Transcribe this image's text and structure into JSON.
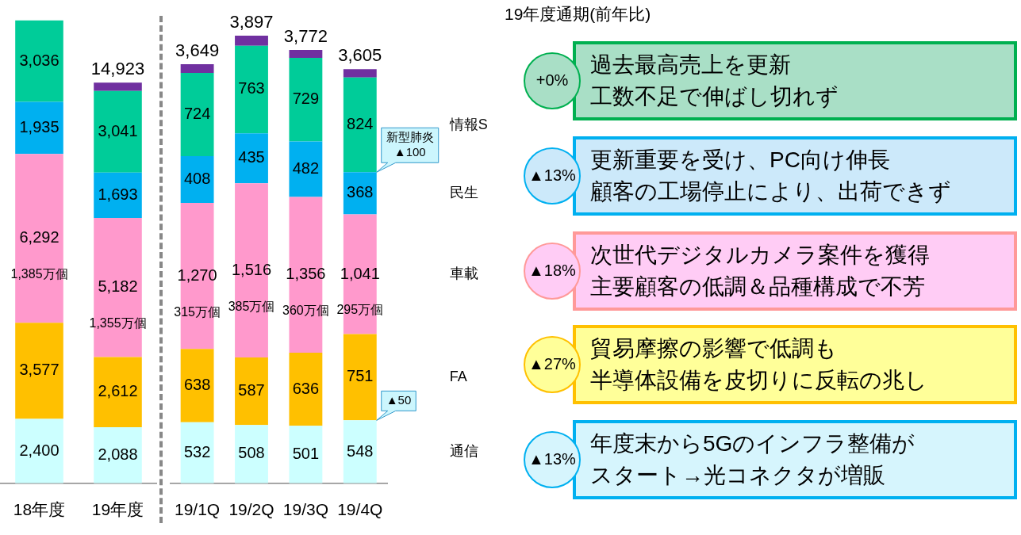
{
  "chart_data": [
    {
      "type": "bar",
      "stacked": true,
      "categories": [
        "18年度",
        "19年度"
      ],
      "series": [
        {
          "color": "#ccffff",
          "values": [
            2400,
            2088
          ],
          "value_labels": [
            "2,400",
            "2,088"
          ]
        },
        {
          "color": "#ffc000",
          "values": [
            3577,
            2612
          ],
          "value_labels": [
            "3,577",
            "2,612"
          ]
        },
        {
          "color": "#ff99cc",
          "values": [
            6292,
            5182
          ],
          "value_labels": [
            "6,292",
            "5,182"
          ]
        },
        {
          "color": "#00b0f0",
          "values": [
            1935,
            1693
          ],
          "value_labels": [
            "1,935",
            "1,693"
          ]
        },
        {
          "color": "#00cc99",
          "values": [
            3036,
            3041
          ],
          "value_labels": [
            "3,036",
            "3,041"
          ]
        },
        {
          "color": "#7030a0",
          "values": [
            null,
            307
          ],
          "value_labels": [
            null,
            null
          ]
        }
      ],
      "totals": [
        null,
        "14,923"
      ],
      "annotations": [
        "1,385万個",
        "1,355万個"
      ]
    },
    {
      "type": "bar",
      "stacked": true,
      "categories": [
        "19/1Q",
        "19/2Q",
        "19/3Q",
        "19/4Q"
      ],
      "series": [
        {
          "name": "通信",
          "color": "#ccffff",
          "values": [
            532,
            508,
            501,
            548
          ],
          "value_labels": [
            "532",
            "508",
            "501",
            "548"
          ]
        },
        {
          "name": "FA",
          "color": "#ffc000",
          "values": [
            638,
            587,
            636,
            751
          ],
          "value_labels": [
            "638",
            "587",
            "636",
            "751"
          ]
        },
        {
          "name": "車載",
          "color": "#ff99cc",
          "values": [
            1270,
            1516,
            1356,
            1041
          ],
          "value_labels": [
            "1,270",
            "1,516",
            "1,356",
            "1,041"
          ]
        },
        {
          "name": "民生",
          "color": "#00b0f0",
          "values": [
            408,
            435,
            482,
            368
          ],
          "value_labels": [
            "408",
            "435",
            "482",
            "368"
          ]
        },
        {
          "name": "情報S",
          "color": "#00cc99",
          "values": [
            724,
            763,
            729,
            824
          ],
          "value_labels": [
            "724",
            "763",
            "729",
            "824"
          ]
        },
        {
          "color": "#7030a0",
          "values": [
            77,
            88,
            68,
            73
          ],
          "value_labels": [
            null,
            null,
            null,
            null
          ]
        }
      ],
      "totals": [
        "3,649",
        "3,897",
        "3,772",
        "3,605"
      ],
      "annotations": [
        "315万個",
        "385万個",
        "360万個",
        "295万個",
        {
          "text": "新型肺炎 ▲100",
          "x": "19/4Q",
          "y": 2708
        },
        {
          "text": "▲50",
          "x": "19/4Q",
          "y": 548
        }
      ]
    },
    {
      "type": "other",
      "title": "19年度通期(前年比)",
      "annotations": [
        "+0%",
        "過去最高売上を更新",
        "工数不足で伸ばし切れず",
        "▲13%",
        "更新重要を受け、PC向け伸長",
        "顧客の工場停止により、出荷できず",
        "▲18%",
        "次世代デジタルカメラ案件を獲得",
        "主要顧客の低調＆品種構成で不芳",
        "▲27%",
        "貿易摩擦の影響で低調も",
        "半導体設備を皮切りに反転の兆し",
        "▲13%",
        "年度末から5Gのインフラ整備が",
        "スタート→光コネクタが増販"
      ]
    }
  ]
}
